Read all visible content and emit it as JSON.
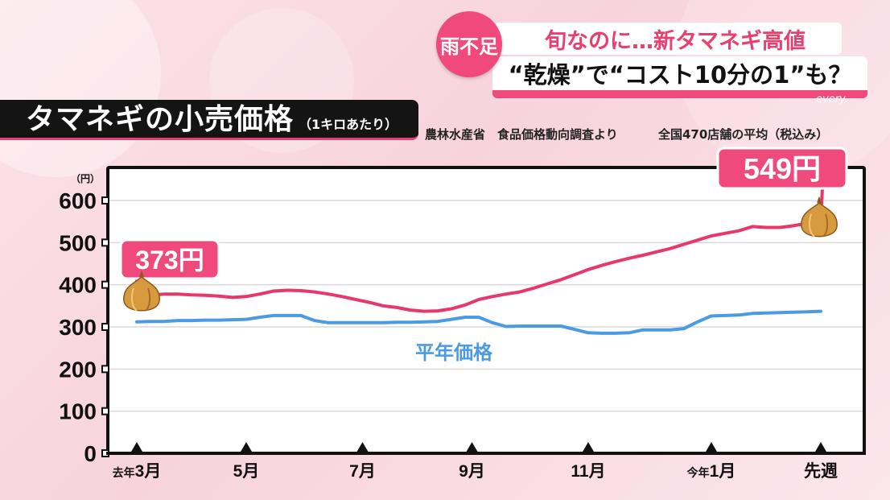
{
  "headline": {
    "badge": "雨不足",
    "line1": "旬なのに…新タマネギ高値",
    "line2": "“乾燥”で“コスト10分の1”も？",
    "channel": "every."
  },
  "colors": {
    "accent": "#ef4a7b",
    "current_line": "#e8386b",
    "average_line": "#4a9be3",
    "title_bar": "#141414"
  },
  "chart_data": {
    "type": "line",
    "title": "タマネギの小売価格",
    "subtitle": "（1キロあたり）",
    "source": "農林水産省　食品価格動向調査より",
    "scope_note": "全国470店舗の平均（税込み）",
    "ylabel": "（円）",
    "ylim": [
      0,
      600
    ],
    "yticks": [
      0,
      100,
      200,
      300,
      400,
      500,
      600
    ],
    "x_ticks": [
      {
        "pos": 0,
        "prefix": "去年",
        "label": "3月"
      },
      {
        "pos": 8,
        "prefix": "",
        "label": "5月"
      },
      {
        "pos": 16.5,
        "prefix": "",
        "label": "7月"
      },
      {
        "pos": 24.5,
        "prefix": "",
        "label": "9月"
      },
      {
        "pos": 33,
        "prefix": "",
        "label": "11月"
      },
      {
        "pos": 42,
        "prefix": "今年",
        "label": "1月"
      },
      {
        "pos": 50,
        "prefix": "",
        "label": "先週"
      }
    ],
    "series": [
      {
        "key": "current",
        "values": [
          373,
          375,
          378,
          378,
          376,
          375,
          373,
          370,
          372,
          378,
          385,
          387,
          386,
          383,
          378,
          372,
          365,
          358,
          350,
          346,
          340,
          337,
          338,
          343,
          352,
          365,
          372,
          378,
          383,
          392,
          402,
          412,
          424,
          436,
          446,
          455,
          463,
          470,
          478,
          486,
          496,
          506,
          516,
          522,
          528,
          538,
          536,
          536,
          540,
          546,
          549
        ]
      },
      {
        "key": "average",
        "name": "平年価格",
        "values": [
          312,
          313,
          313,
          315,
          315,
          316,
          316,
          317,
          318,
          323,
          327,
          327,
          327,
          315,
          310,
          310,
          310,
          310,
          310,
          311,
          311,
          312,
          313,
          318,
          323,
          323,
          310,
          301,
          302,
          302,
          302,
          302,
          294,
          286,
          285,
          285,
          286,
          293,
          293,
          293,
          296,
          312,
          326,
          327,
          328,
          332,
          333,
          334,
          335,
          336,
          337
        ]
      }
    ],
    "annotations": [
      {
        "series": "current",
        "index": 0,
        "text": "373円"
      },
      {
        "series": "current",
        "index": 50,
        "text": "549円"
      }
    ]
  }
}
